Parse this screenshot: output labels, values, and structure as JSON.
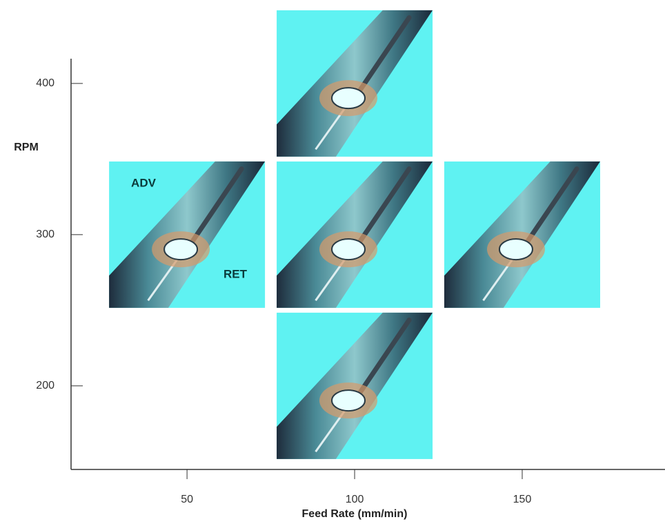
{
  "chart_data": {
    "type": "image-scatter",
    "xlabel": "Feed Rate (mm/min)",
    "ylabel": "RPM",
    "x": [
      100,
      50,
      100,
      150,
      100
    ],
    "y": [
      400,
      300,
      300,
      300,
      200
    ],
    "xlim": [
      15.4,
      192.6
    ],
    "ylim": [
      144.7,
      416.4
    ],
    "xticks": [
      50,
      100,
      150
    ],
    "yticks": [
      200,
      300,
      400
    ],
    "annotations": [
      "ADV",
      "RET"
    ],
    "color": "#5ff2f2"
  }
}
